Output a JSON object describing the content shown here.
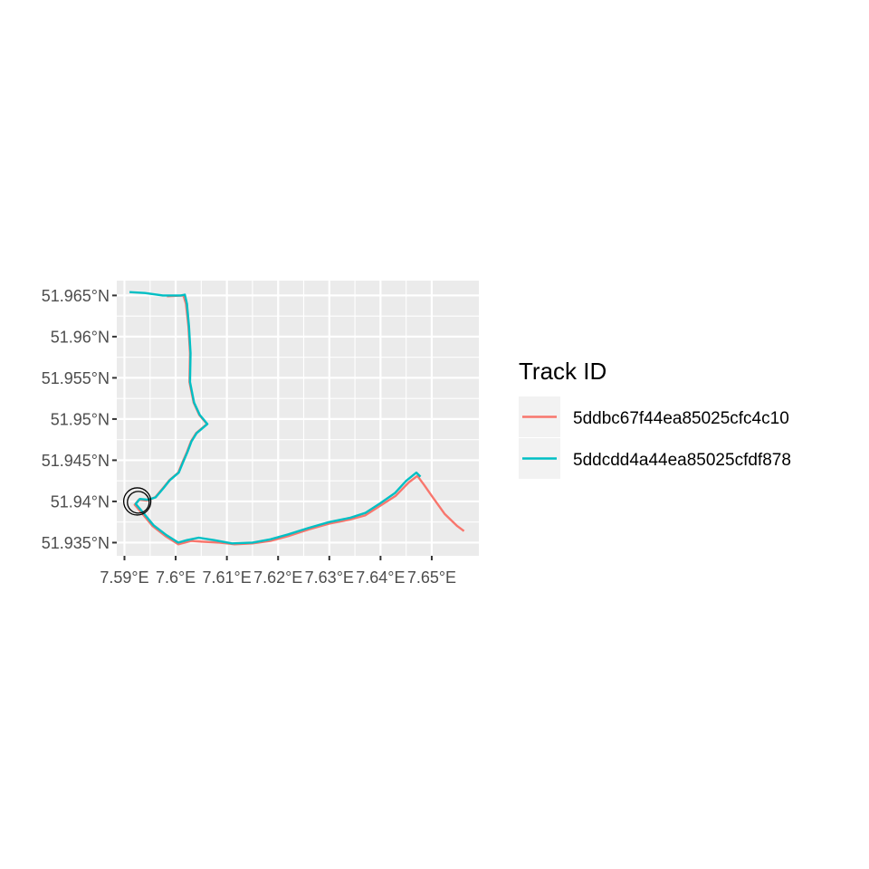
{
  "chart_data": {
    "type": "line",
    "x_ticks": [
      "7.59°E",
      "7.6°E",
      "7.61°E",
      "7.62°E",
      "7.63°E",
      "7.64°E",
      "7.65°E"
    ],
    "x_tick_values": [
      7.59,
      7.6,
      7.61,
      7.62,
      7.63,
      7.64,
      7.65
    ],
    "y_ticks": [
      "51.935°N",
      "51.94°N",
      "51.945°N",
      "51.95°N",
      "51.955°N",
      "51.96°N",
      "51.965°N"
    ],
    "y_tick_values": [
      51.935,
      51.94,
      51.945,
      51.95,
      51.955,
      51.96,
      51.965
    ],
    "xlim": [
      7.5885,
      7.6592
    ],
    "ylim": [
      51.9334,
      51.9668
    ],
    "grid": true,
    "legend": {
      "title": "Track ID",
      "placement": "right"
    },
    "series": [
      {
        "name": "5ddbc67f44ea85025cfc4c10",
        "color": "#F8766D",
        "points": [
          [
            7.5983,
            51.9649
          ],
          [
            7.6015,
            51.965
          ],
          [
            7.602,
            51.964
          ],
          [
            7.6025,
            51.9612
          ],
          [
            7.6028,
            51.958
          ],
          [
            7.6027,
            51.9545
          ],
          [
            7.6035,
            51.952
          ],
          [
            7.6046,
            51.9505
          ],
          [
            7.6061,
            51.9494
          ],
          [
            7.604,
            51.9483
          ],
          [
            7.603,
            51.9473
          ],
          [
            7.6022,
            51.946
          ],
          [
            7.6013,
            51.9447
          ],
          [
            7.6005,
            51.9435
          ],
          [
            7.5988,
            51.9426
          ],
          [
            7.5975,
            51.9416
          ],
          [
            7.596,
            51.9405
          ],
          [
            7.5944,
            51.9401
          ],
          [
            7.5928,
            51.9402
          ],
          [
            7.592,
            51.9396
          ],
          [
            7.5935,
            51.9385
          ],
          [
            7.5955,
            51.937
          ],
          [
            7.598,
            51.9358
          ],
          [
            7.6005,
            51.9348
          ],
          [
            7.603,
            51.9352
          ],
          [
            7.6055,
            51.9351
          ],
          [
            7.6085,
            51.935
          ],
          [
            7.6115,
            51.9348
          ],
          [
            7.615,
            51.9349
          ],
          [
            7.6185,
            51.9352
          ],
          [
            7.622,
            51.9358
          ],
          [
            7.626,
            51.9366
          ],
          [
            7.63,
            51.9373
          ],
          [
            7.634,
            51.9378
          ],
          [
            7.637,
            51.9383
          ],
          [
            7.64,
            51.9395
          ],
          [
            7.643,
            51.9407
          ],
          [
            7.6455,
            51.9423
          ],
          [
            7.6472,
            51.9431
          ],
          [
            7.6485,
            51.942
          ],
          [
            7.6502,
            51.9405
          ],
          [
            7.6525,
            51.9385
          ],
          [
            7.655,
            51.937
          ],
          [
            7.6563,
            51.9364
          ]
        ]
      },
      {
        "name": "5ddcdd4a44ea85025cfdf878",
        "color": "#00BFC4",
        "points": [
          [
            7.591,
            51.9654
          ],
          [
            7.594,
            51.9653
          ],
          [
            7.5975,
            51.965
          ],
          [
            7.601,
            51.965
          ],
          [
            7.6018,
            51.9651
          ],
          [
            7.6022,
            51.964
          ],
          [
            7.6026,
            51.9612
          ],
          [
            7.6029,
            51.958
          ],
          [
            7.6028,
            51.9545
          ],
          [
            7.6036,
            51.952
          ],
          [
            7.6047,
            51.9505
          ],
          [
            7.6062,
            51.9494
          ],
          [
            7.6041,
            51.9483
          ],
          [
            7.6031,
            51.9473
          ],
          [
            7.6023,
            51.946
          ],
          [
            7.6014,
            51.9447
          ],
          [
            7.6006,
            51.9435
          ],
          [
            7.5989,
            51.9426
          ],
          [
            7.5976,
            51.9416
          ],
          [
            7.5961,
            51.9405
          ],
          [
            7.5946,
            51.9402
          ],
          [
            7.593,
            51.9403
          ],
          [
            7.5922,
            51.9397
          ],
          [
            7.5937,
            51.9386
          ],
          [
            7.5957,
            51.9371
          ],
          [
            7.5982,
            51.9359
          ],
          [
            7.6005,
            51.935
          ],
          [
            7.6022,
            51.9353
          ],
          [
            7.6045,
            51.9356
          ],
          [
            7.6075,
            51.9353
          ],
          [
            7.611,
            51.9349
          ],
          [
            7.615,
            51.935
          ],
          [
            7.6185,
            51.9354
          ],
          [
            7.622,
            51.936
          ],
          [
            7.626,
            51.9368
          ],
          [
            7.63,
            51.9375
          ],
          [
            7.634,
            51.938
          ],
          [
            7.637,
            51.9386
          ],
          [
            7.64,
            51.9398
          ],
          [
            7.6428,
            51.941
          ],
          [
            7.645,
            51.9425
          ],
          [
            7.647,
            51.9435
          ],
          [
            7.6478,
            51.943
          ]
        ]
      }
    ],
    "annotations": [
      {
        "shape": "circle",
        "x": 7.5925,
        "y": 51.94
      },
      {
        "shape": "circle",
        "x": 7.5927,
        "y": 51.9399
      }
    ]
  }
}
